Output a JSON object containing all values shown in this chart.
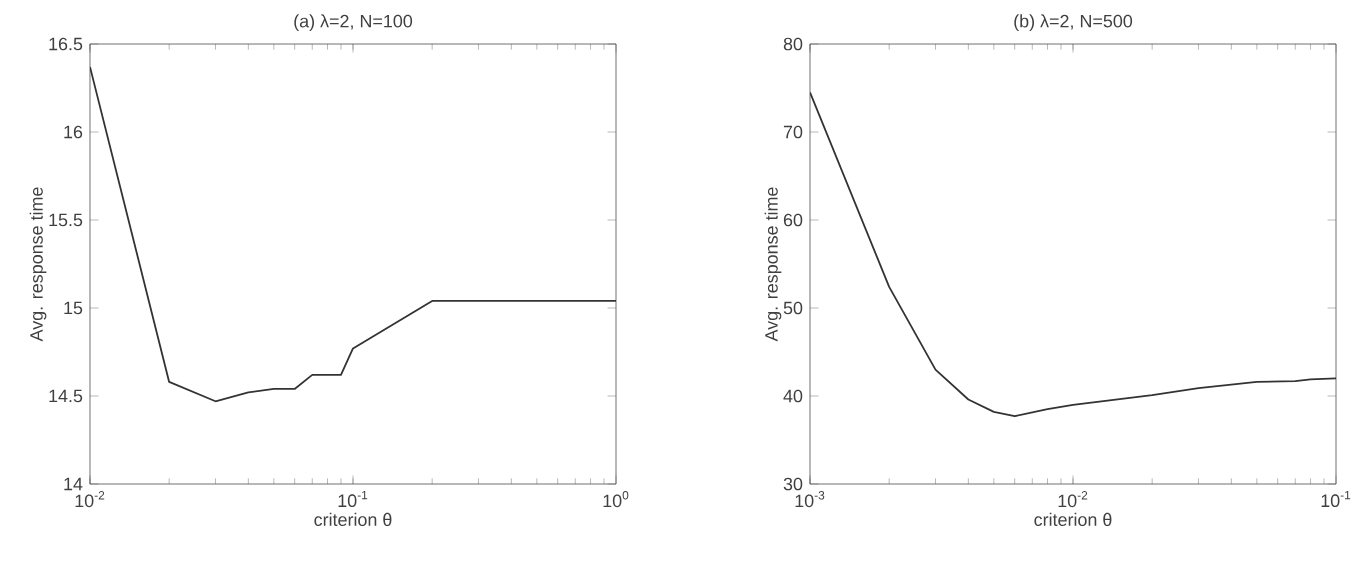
{
  "chart_data": [
    {
      "type": "line",
      "title": "(a) λ=2, N=100",
      "xlabel": "criterion θ",
      "ylabel": "Avg. response time",
      "log": "x",
      "marker": "none",
      "line_style": "solid",
      "x": [
        0.01,
        0.02,
        0.03,
        0.04,
        0.05,
        0.06,
        0.07,
        0.09,
        0.1,
        0.2,
        1
      ],
      "series": [
        {
          "color": "#333333",
          "values": [
            16.37,
            14.58,
            14.47,
            14.52,
            14.54,
            14.54,
            14.62,
            14.62,
            14.77,
            15.04,
            15.04
          ]
        }
      ],
      "xlim": [
        0.01,
        1
      ],
      "ylim": [
        14,
        16.5
      ],
      "xticks": [
        {
          "value": 0.01,
          "label": "10$^{-2}$"
        },
        {
          "value": 0.1,
          "label": "10$^{-1}$"
        },
        {
          "value": 1,
          "label": "10$^{0}$"
        }
      ],
      "yticks": [
        14,
        14.5,
        15,
        15.5,
        16,
        16.5
      ]
    },
    {
      "type": "line",
      "title": "(b) λ=2, N=500",
      "xlabel": "criterion θ",
      "ylabel": "Avg. response time",
      "log": "x",
      "marker": "none",
      "line_style": "solid",
      "x": [
        0.001,
        0.002,
        0.003,
        0.004,
        0.005,
        0.006,
        0.008,
        0.01,
        0.02,
        0.03,
        0.05,
        0.07,
        0.08,
        0.1
      ],
      "series": [
        {
          "color": "#333333",
          "values": [
            74.5,
            52.4,
            43,
            39.6,
            38.2,
            37.7,
            38.5,
            39,
            40.1,
            40.9,
            41.6,
            41.7,
            41.9,
            42
          ]
        }
      ],
      "xlim": [
        0.001,
        0.1
      ],
      "ylim": [
        30,
        80
      ],
      "xticks": [
        {
          "value": 0.001,
          "label": "10$^{-3}$"
        },
        {
          "value": 0.01,
          "label": "10$^{-2}$"
        },
        {
          "value": 0.1,
          "label": "10$^{-1}$"
        }
      ],
      "yticks": [
        30,
        40,
        50,
        60,
        70,
        80
      ]
    }
  ]
}
